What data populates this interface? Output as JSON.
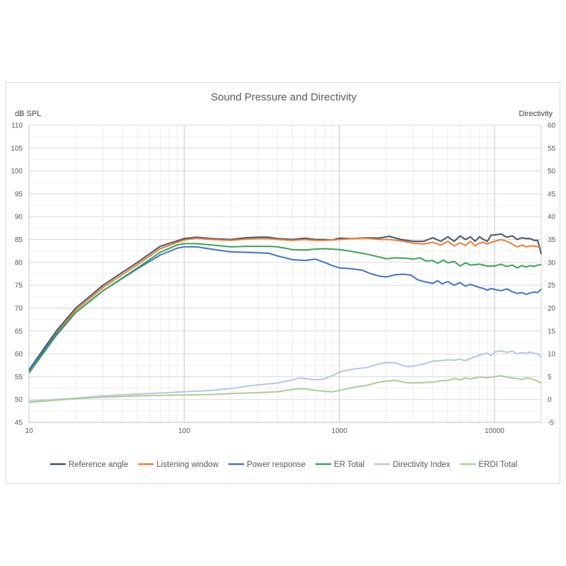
{
  "chart_data": {
    "type": "line",
    "title": "Sound Pressure and Directivity",
    "ylabel": "dB SPL",
    "y2label": "Directivity",
    "xscale": "log",
    "xlim": [
      10,
      20000
    ],
    "ylim": [
      45,
      110
    ],
    "y2lim": [
      -5,
      60
    ],
    "xticks": [
      10,
      100,
      1000,
      10000
    ],
    "xtick_labels": [
      "10",
      "100",
      "1000",
      "10000"
    ],
    "yticks": [
      45,
      50,
      55,
      60,
      65,
      70,
      75,
      80,
      85,
      90,
      95,
      100,
      105,
      110
    ],
    "ytick_labels": [
      "45",
      "50",
      "55",
      "60",
      "65",
      "70",
      "75",
      "80",
      "85",
      "90",
      "95",
      "100",
      "105",
      "110"
    ],
    "y2ticks": [
      -5,
      0,
      5,
      10,
      15,
      20,
      25,
      30,
      35,
      40,
      45,
      50,
      55,
      60
    ],
    "y2tick_labels": [
      "-5",
      "0",
      "5",
      "10",
      "15",
      "20",
      "25",
      "30",
      "35",
      "40",
      "45",
      "50",
      "55",
      "60"
    ],
    "grid": true,
    "legend_position": "bottom",
    "series": [
      {
        "name": "Reference angle",
        "color": "#44546a",
        "axis": "left",
        "points": [
          [
            10,
            56.5
          ],
          [
            15,
            65
          ],
          [
            20,
            70
          ],
          [
            30,
            75
          ],
          [
            50,
            80
          ],
          [
            70,
            83.5
          ],
          [
            100,
            85.2
          ],
          [
            120,
            85.5
          ],
          [
            150,
            85.2
          ],
          [
            200,
            85.0
          ],
          [
            250,
            85.4
          ],
          [
            300,
            85.5
          ],
          [
            350,
            85.5
          ],
          [
            400,
            85.2
          ],
          [
            500,
            85.0
          ],
          [
            600,
            85.3
          ],
          [
            700,
            85.0
          ],
          [
            800,
            85.0
          ],
          [
            900,
            84.9
          ],
          [
            1000,
            85.3
          ],
          [
            1200,
            85.2
          ],
          [
            1500,
            85.4
          ],
          [
            1800,
            85.3
          ],
          [
            2100,
            85.7
          ],
          [
            2500,
            85.0
          ],
          [
            3000,
            84.6
          ],
          [
            3500,
            84.6
          ],
          [
            4000,
            85.4
          ],
          [
            4500,
            84.6
          ],
          [
            5000,
            85.6
          ],
          [
            5500,
            84.6
          ],
          [
            6000,
            85.8
          ],
          [
            6500,
            85.0
          ],
          [
            7000,
            85.6
          ],
          [
            7500,
            84.6
          ],
          [
            8000,
            85.6
          ],
          [
            8500,
            85.0
          ],
          [
            9000,
            84.6
          ],
          [
            9500,
            86.0
          ],
          [
            10000,
            86.0
          ],
          [
            11000,
            86.2
          ],
          [
            12000,
            85.5
          ],
          [
            13000,
            85.8
          ],
          [
            14000,
            85.0
          ],
          [
            15000,
            85.4
          ],
          [
            16000,
            85.2
          ],
          [
            17000,
            85.2
          ],
          [
            18000,
            84.8
          ],
          [
            19000,
            84.8
          ],
          [
            20000,
            81.8
          ]
        ]
      },
      {
        "name": "Listening window",
        "color": "#ed7d31",
        "axis": "left",
        "points": [
          [
            10,
            56
          ],
          [
            15,
            64.5
          ],
          [
            20,
            69.5
          ],
          [
            30,
            74.5
          ],
          [
            50,
            79.5
          ],
          [
            70,
            83
          ],
          [
            100,
            84.9
          ],
          [
            120,
            85.3
          ],
          [
            150,
            85.0
          ],
          [
            200,
            84.8
          ],
          [
            250,
            85.1
          ],
          [
            300,
            85.2
          ],
          [
            350,
            85.2
          ],
          [
            400,
            85.0
          ],
          [
            500,
            84.8
          ],
          [
            600,
            85.0
          ],
          [
            700,
            84.8
          ],
          [
            800,
            84.8
          ],
          [
            900,
            84.9
          ],
          [
            1000,
            85.0
          ],
          [
            1200,
            85.2
          ],
          [
            1500,
            85.3
          ],
          [
            1800,
            85.0
          ],
          [
            2100,
            85.0
          ],
          [
            2500,
            84.7
          ],
          [
            3000,
            84.2
          ],
          [
            3500,
            84.0
          ],
          [
            4000,
            84.4
          ],
          [
            4500,
            83.8
          ],
          [
            5000,
            84.6
          ],
          [
            5500,
            83.6
          ],
          [
            6000,
            84.3
          ],
          [
            6500,
            83.7
          ],
          [
            7000,
            84.6
          ],
          [
            7500,
            83.6
          ],
          [
            8000,
            84.2
          ],
          [
            8500,
            84.4
          ],
          [
            9000,
            84.0
          ],
          [
            9500,
            84.4
          ],
          [
            10000,
            84.6
          ],
          [
            11000,
            85.0
          ],
          [
            12000,
            84.6
          ],
          [
            13000,
            84.0
          ],
          [
            14000,
            83.4
          ],
          [
            15000,
            83.8
          ],
          [
            16000,
            83.4
          ],
          [
            17000,
            83.6
          ],
          [
            18000,
            83.6
          ],
          [
            19000,
            83.4
          ],
          [
            20000,
            83.2
          ]
        ]
      },
      {
        "name": "Power response",
        "color": "#4472c4",
        "axis": "left",
        "points": [
          [
            10,
            56.4
          ],
          [
            15,
            64.3
          ],
          [
            20,
            69
          ],
          [
            30,
            73.8
          ],
          [
            50,
            78.6
          ],
          [
            70,
            81.6
          ],
          [
            90,
            83.1
          ],
          [
            100,
            83.4
          ],
          [
            120,
            83.4
          ],
          [
            150,
            82.9
          ],
          [
            200,
            82.3
          ],
          [
            250,
            82.2
          ],
          [
            300,
            82.1
          ],
          [
            350,
            82.0
          ],
          [
            400,
            81.4
          ],
          [
            500,
            80.6
          ],
          [
            600,
            80.4
          ],
          [
            700,
            80.7
          ],
          [
            800,
            80.0
          ],
          [
            900,
            79.3
          ],
          [
            1000,
            78.8
          ],
          [
            1200,
            78.6
          ],
          [
            1400,
            78.3
          ],
          [
            1600,
            77.5
          ],
          [
            1800,
            77.0
          ],
          [
            2000,
            76.8
          ],
          [
            2300,
            77.3
          ],
          [
            2600,
            77.4
          ],
          [
            2900,
            77.2
          ],
          [
            3200,
            76.2
          ],
          [
            3500,
            75.8
          ],
          [
            4000,
            75.4
          ],
          [
            4300,
            76.0
          ],
          [
            4600,
            75.3
          ],
          [
            5000,
            75.8
          ],
          [
            5500,
            75.0
          ],
          [
            6000,
            75.6
          ],
          [
            6500,
            74.8
          ],
          [
            7000,
            75.2
          ],
          [
            8000,
            74.5
          ],
          [
            8500,
            74.3
          ],
          [
            9000,
            73.9
          ],
          [
            9500,
            74.3
          ],
          [
            10000,
            74.1
          ],
          [
            11000,
            73.8
          ],
          [
            12000,
            74.2
          ],
          [
            13000,
            73.6
          ],
          [
            14000,
            73.2
          ],
          [
            15000,
            73.4
          ],
          [
            16000,
            73.0
          ],
          [
            17000,
            73.3
          ],
          [
            18000,
            73.5
          ],
          [
            19000,
            73.4
          ],
          [
            20000,
            74.2
          ]
        ]
      },
      {
        "name": "ER Total",
        "color": "#3aa455",
        "axis": "left",
        "points": [
          [
            10,
            55.8
          ],
          [
            15,
            64
          ],
          [
            20,
            69
          ],
          [
            30,
            73.8
          ],
          [
            50,
            78.8
          ],
          [
            70,
            82.2
          ],
          [
            90,
            83.8
          ],
          [
            100,
            84.1
          ],
          [
            120,
            84.1
          ],
          [
            150,
            83.8
          ],
          [
            200,
            83.4
          ],
          [
            250,
            83.5
          ],
          [
            300,
            83.5
          ],
          [
            350,
            83.5
          ],
          [
            400,
            83.4
          ],
          [
            500,
            82.8
          ],
          [
            600,
            82.7
          ],
          [
            700,
            82.9
          ],
          [
            800,
            83.0
          ],
          [
            900,
            82.9
          ],
          [
            1000,
            82.8
          ],
          [
            1200,
            82.4
          ],
          [
            1500,
            81.8
          ],
          [
            1800,
            81.2
          ],
          [
            2000,
            80.8
          ],
          [
            2300,
            81.0
          ],
          [
            2700,
            80.9
          ],
          [
            3000,
            80.7
          ],
          [
            3300,
            81.0
          ],
          [
            3600,
            80.3
          ],
          [
            4000,
            80.4
          ],
          [
            4300,
            79.8
          ],
          [
            4700,
            80.5
          ],
          [
            5000,
            79.9
          ],
          [
            5500,
            80.2
          ],
          [
            6000,
            79.2
          ],
          [
            6500,
            79.9
          ],
          [
            7000,
            79.4
          ],
          [
            8000,
            79.6
          ],
          [
            9000,
            79.2
          ],
          [
            10000,
            79.2
          ],
          [
            11000,
            79.6
          ],
          [
            12000,
            79.1
          ],
          [
            13000,
            79.4
          ],
          [
            14000,
            78.8
          ],
          [
            15000,
            79.3
          ],
          [
            16000,
            79.0
          ],
          [
            17000,
            79.3
          ],
          [
            18000,
            79.1
          ],
          [
            19000,
            79.4
          ],
          [
            20000,
            79.5
          ]
        ]
      },
      {
        "name": "Directivity Index",
        "color": "#b4c7e7",
        "axis": "right",
        "points": [
          [
            10,
            -0.4
          ],
          [
            20,
            0.3
          ],
          [
            30,
            0.8
          ],
          [
            50,
            1.2
          ],
          [
            70,
            1.4
          ],
          [
            100,
            1.7
          ],
          [
            150,
            2.0
          ],
          [
            200,
            2.4
          ],
          [
            250,
            2.9
          ],
          [
            300,
            3.2
          ],
          [
            400,
            3.6
          ],
          [
            500,
            4.3
          ],
          [
            550,
            4.7
          ],
          [
            600,
            4.6
          ],
          [
            700,
            4.3
          ],
          [
            800,
            4.5
          ],
          [
            900,
            5.2
          ],
          [
            1000,
            6.0
          ],
          [
            1200,
            6.6
          ],
          [
            1500,
            7.0
          ],
          [
            1800,
            7.8
          ],
          [
            2000,
            8.1
          ],
          [
            2300,
            8.0
          ],
          [
            2700,
            7.2
          ],
          [
            3000,
            7.3
          ],
          [
            3500,
            7.8
          ],
          [
            4000,
            8.4
          ],
          [
            4500,
            8.5
          ],
          [
            5000,
            8.7
          ],
          [
            5500,
            8.6
          ],
          [
            6000,
            8.8
          ],
          [
            6500,
            8.5
          ],
          [
            7000,
            9.0
          ],
          [
            8000,
            9.7
          ],
          [
            9000,
            10.2
          ],
          [
            9500,
            9.6
          ],
          [
            10000,
            10.4
          ],
          [
            11000,
            10.7
          ],
          [
            12000,
            10.3
          ],
          [
            13000,
            10.6
          ],
          [
            14000,
            10.0
          ],
          [
            15000,
            10.3
          ],
          [
            16000,
            10.1
          ],
          [
            17000,
            10.4
          ],
          [
            18000,
            10.1
          ],
          [
            19000,
            10.0
          ],
          [
            20000,
            9.2
          ]
        ]
      },
      {
        "name": "ERDI Total",
        "color": "#a9d18e",
        "axis": "right",
        "points": [
          [
            10,
            -0.6
          ],
          [
            20,
            0.2
          ],
          [
            30,
            0.5
          ],
          [
            50,
            0.8
          ],
          [
            70,
            0.9
          ],
          [
            100,
            1.0
          ],
          [
            150,
            1.1
          ],
          [
            200,
            1.3
          ],
          [
            300,
            1.5
          ],
          [
            400,
            1.7
          ],
          [
            500,
            2.2
          ],
          [
            550,
            2.4
          ],
          [
            600,
            2.3
          ],
          [
            700,
            2.0
          ],
          [
            800,
            1.8
          ],
          [
            900,
            1.7
          ],
          [
            1000,
            2.0
          ],
          [
            1200,
            2.6
          ],
          [
            1500,
            3.1
          ],
          [
            1800,
            3.8
          ],
          [
            2000,
            4.0
          ],
          [
            2300,
            4.2
          ],
          [
            2700,
            3.7
          ],
          [
            3000,
            3.6
          ],
          [
            3500,
            3.7
          ],
          [
            4000,
            3.8
          ],
          [
            4500,
            4.1
          ],
          [
            5000,
            4.2
          ],
          [
            5500,
            4.6
          ],
          [
            6000,
            4.3
          ],
          [
            6500,
            4.7
          ],
          [
            7000,
            4.5
          ],
          [
            8000,
            4.9
          ],
          [
            9000,
            4.8
          ],
          [
            10000,
            5.0
          ],
          [
            11000,
            5.2
          ],
          [
            12000,
            4.9
          ],
          [
            13000,
            4.7
          ],
          [
            14000,
            4.6
          ],
          [
            15000,
            4.4
          ],
          [
            16000,
            4.7
          ],
          [
            17000,
            4.6
          ],
          [
            18000,
            4.3
          ],
          [
            19000,
            4.0
          ],
          [
            20000,
            3.6
          ]
        ]
      }
    ]
  }
}
